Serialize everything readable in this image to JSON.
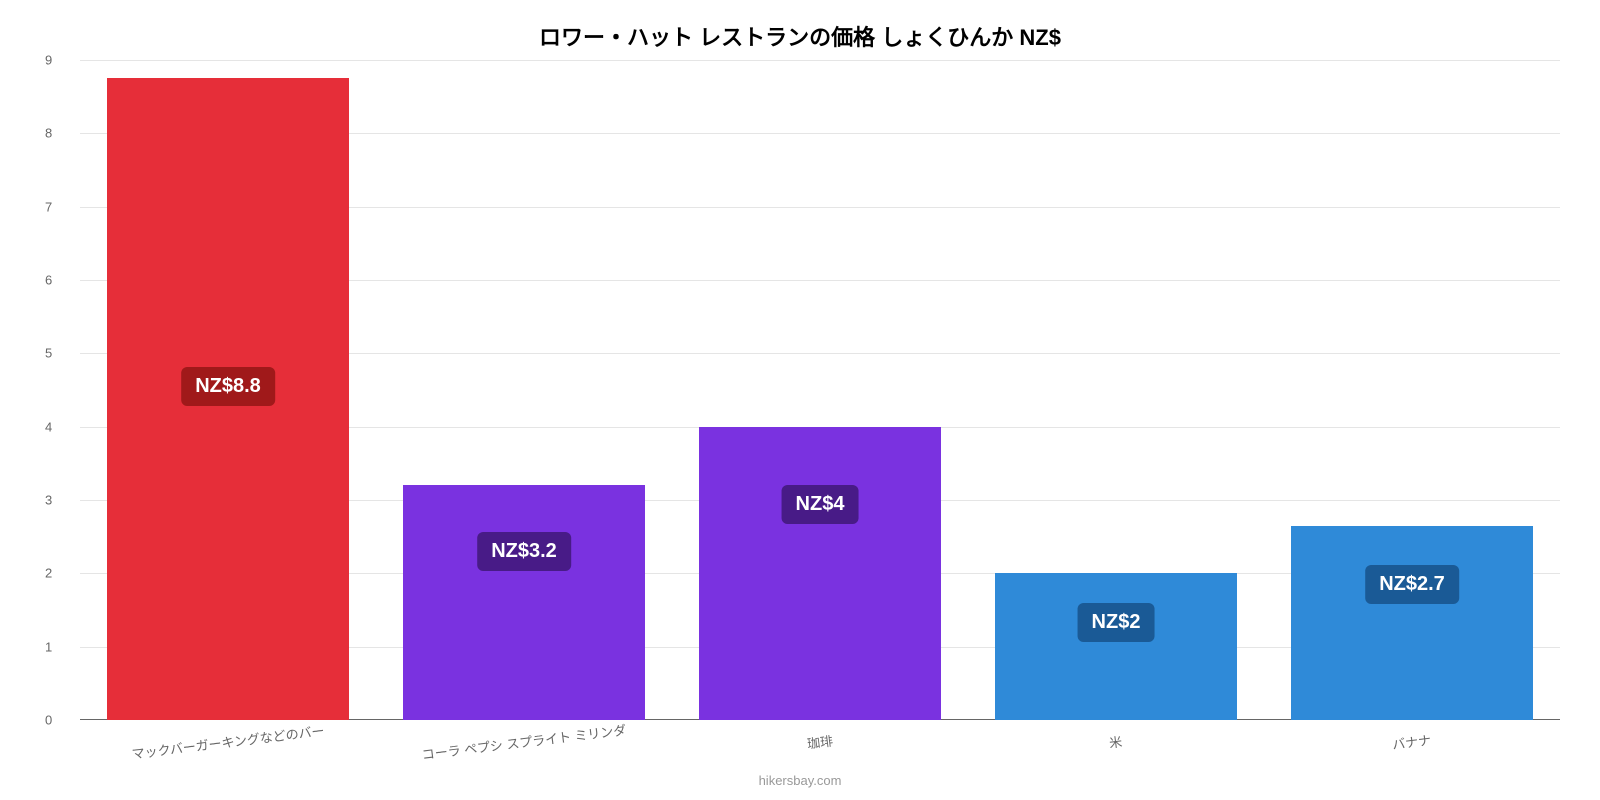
{
  "chart": {
    "type": "bar",
    "title": "ロワー・ハット レストランの価格 しょくひんか NZ$",
    "title_fontsize": 22,
    "background_color": "#ffffff",
    "grid_color": "#e5e5e5",
    "ylim": [
      0,
      9
    ],
    "ytick_step": 1,
    "yticks": [
      0,
      1,
      2,
      3,
      4,
      5,
      6,
      7,
      8,
      9
    ],
    "bar_width": 0.82,
    "x_label_rotation": -7,
    "x_label_fontsize": 13,
    "y_label_fontsize": 13,
    "categories": [
      "マックバーガーキングなどのバー",
      "コーラ ペプシ スプライト ミリンダ",
      "珈琲",
      "米",
      "バナナ"
    ],
    "values": [
      8.75,
      3.2,
      4.0,
      2.0,
      2.65
    ],
    "value_labels": [
      "NZ$8.8",
      "NZ$3.2",
      "NZ$4",
      "NZ$2",
      "NZ$2.7"
    ],
    "bar_colors": [
      "#e62e39",
      "#7a32e0",
      "#7a32e0",
      "#2f8ad8",
      "#2f8ad8"
    ],
    "label_bg_colors": [
      "#a0191a",
      "#481b87",
      "#481b87",
      "#1a5a96",
      "#1a5a96"
    ],
    "label_fontsize": 20,
    "attribution": "hikersbay.com"
  }
}
